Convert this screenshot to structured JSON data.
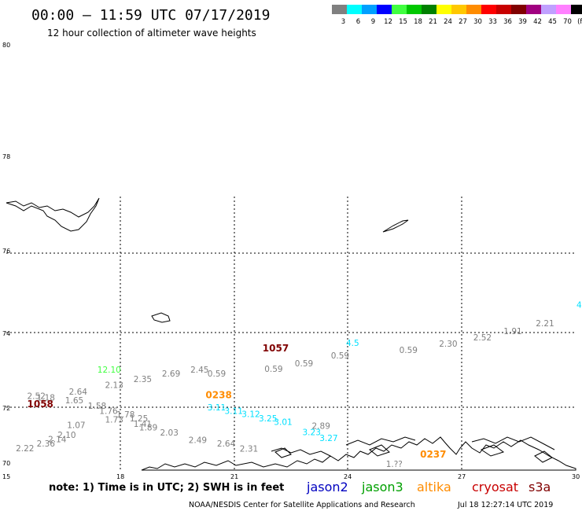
{
  "header": {
    "title": "00:00 – 11:59 UTC 07/17/2019",
    "subtitle": "12 hour collection of altimeter wave heights"
  },
  "scale": {
    "labels": [
      "3",
      "6",
      "9",
      "12",
      "15",
      "18",
      "21",
      "24",
      "27",
      "30",
      "33",
      "36",
      "39",
      "42",
      "45",
      "70",
      "(ft)"
    ],
    "colors": [
      "#808080",
      "#00ffff",
      "#00a0ff",
      "#0000ff",
      "#40ff40",
      "#00c800",
      "#008000",
      "#ffff00",
      "#ffc800",
      "#ff8c00",
      "#ff0000",
      "#c80000",
      "#800000",
      "#a00080",
      "#c0a0ff",
      "#ff80ff",
      "#000000"
    ]
  },
  "axes": {
    "lat_labels": [
      "80",
      "78",
      "76",
      "74",
      "72",
      "70"
    ],
    "lon_labels": [
      "15",
      "18",
      "21",
      "24",
      "27",
      "30"
    ]
  },
  "tracks": {
    "jason3": [
      {
        "t": "12.10",
        "lon": 17.4,
        "lat": 74.48
      }
    ],
    "jason2": [
      {
        "t": "4.",
        "lon": 30.02,
        "lat": 77.45
      },
      {
        "t": "4.5",
        "lon": 23.95,
        "lat": 75.7
      },
      {
        "t": "3.11",
        "lon": 20.3,
        "lat": 72.74
      },
      {
        "t": "3.11",
        "lon": 20.75,
        "lat": 72.58
      },
      {
        "t": "3.12",
        "lon": 21.2,
        "lat": 72.44
      },
      {
        "t": "3.25",
        "lon": 21.65,
        "lat": 72.24
      },
      {
        "t": "3.01",
        "lon": 22.05,
        "lat": 72.07
      },
      {
        "t": "3.23",
        "lon": 22.8,
        "lat": 71.6
      },
      {
        "t": "3.27",
        "lon": 23.25,
        "lat": 71.34
      }
    ],
    "gray": [
      {
        "t": "2.21",
        "lon": 28.95,
        "lat": 76.6
      },
      {
        "t": "1.91",
        "lon": 28.1,
        "lat": 76.25
      },
      {
        "t": "2.52",
        "lon": 27.3,
        "lat": 75.95
      },
      {
        "t": "2.30",
        "lon": 26.4,
        "lat": 75.67
      },
      {
        "t": "0.59",
        "lon": 25.35,
        "lat": 75.38
      },
      {
        "t": "0.59",
        "lon": 23.55,
        "lat": 75.12
      },
      {
        "t": "0.59",
        "lon": 22.6,
        "lat": 74.77
      },
      {
        "t": "0.59",
        "lon": 21.8,
        "lat": 74.51
      },
      {
        "t": "0.59",
        "lon": 20.3,
        "lat": 74.29
      },
      {
        "t": "2.45",
        "lon": 19.85,
        "lat": 74.47
      },
      {
        "t": "2.69",
        "lon": 19.1,
        "lat": 74.3
      },
      {
        "t": "2.35",
        "lon": 18.35,
        "lat": 74.05
      },
      {
        "t": "2.13",
        "lon": 17.6,
        "lat": 73.77
      },
      {
        "t": "2.64",
        "lon": 16.65,
        "lat": 73.47
      },
      {
        "t": "2.52",
        "lon": 15.55,
        "lat": 73.27
      },
      {
        "t": "1.18",
        "lon": 15.8,
        "lat": 73.2
      },
      {
        "t": "1.65",
        "lon": 16.55,
        "lat": 73.07
      },
      {
        "t": "1.58",
        "lon": 17.15,
        "lat": 72.81
      },
      {
        "t": "1.76",
        "lon": 17.45,
        "lat": 72.58
      },
      {
        "t": "1.78",
        "lon": 17.9,
        "lat": 72.42
      },
      {
        "t": "1.25",
        "lon": 18.25,
        "lat": 72.24
      },
      {
        "t": "1.73",
        "lon": 17.6,
        "lat": 72.18
      },
      {
        "t": "1.41",
        "lon": 18.35,
        "lat": 71.98
      },
      {
        "t": "1.07",
        "lon": 16.6,
        "lat": 71.93
      },
      {
        "t": "1.89",
        "lon": 18.5,
        "lat": 71.83
      },
      {
        "t": "2.10",
        "lon": 16.35,
        "lat": 71.48
      },
      {
        "t": "2.03",
        "lon": 19.05,
        "lat": 71.58
      },
      {
        "t": "2.14",
        "lon": 16.1,
        "lat": 71.28
      },
      {
        "t": "2.49",
        "lon": 19.8,
        "lat": 71.25
      },
      {
        "t": "2.36",
        "lon": 15.8,
        "lat": 71.09
      },
      {
        "t": "2.64",
        "lon": 20.55,
        "lat": 71.09
      },
      {
        "t": "2.22",
        "lon": 15.25,
        "lat": 70.87
      },
      {
        "t": "2.31",
        "lon": 21.15,
        "lat": 70.84
      },
      {
        "t": "2.89",
        "lon": 23.05,
        "lat": 71.9
      },
      {
        "t": "1.??",
        "lon": 25.0,
        "lat": 70.15
      }
    ],
    "times": [
      {
        "t": "1057",
        "color": "#800000",
        "lon": 21.75,
        "lat": 75.45
      },
      {
        "t": "1058",
        "color": "#800000",
        "lon": 15.55,
        "lat": 72.88
      },
      {
        "t": "0238",
        "color": "#ff8c00",
        "lon": 20.25,
        "lat": 73.31
      },
      {
        "t": "0237",
        "color": "#ff8c00",
        "lon": 25.9,
        "lat": 70.57
      }
    ]
  },
  "footer": {
    "note": "note: 1) Time is in UTC; 2) SWH is in feet",
    "missions": [
      {
        "name": "jason2",
        "color": "#0000c0"
      },
      {
        "name": "jason3",
        "color": "#00a000"
      },
      {
        "name": "altika",
        "color": "#ff8c00"
      },
      {
        "name": "cryosat",
        "color": "#c80000"
      },
      {
        "name": "s3a",
        "color": "#800000"
      }
    ],
    "credit": "NOAA/NESDIS Center for Satellite Applications and Research",
    "timestamp": "Jul 18 12:27:14 UTC 2019"
  }
}
